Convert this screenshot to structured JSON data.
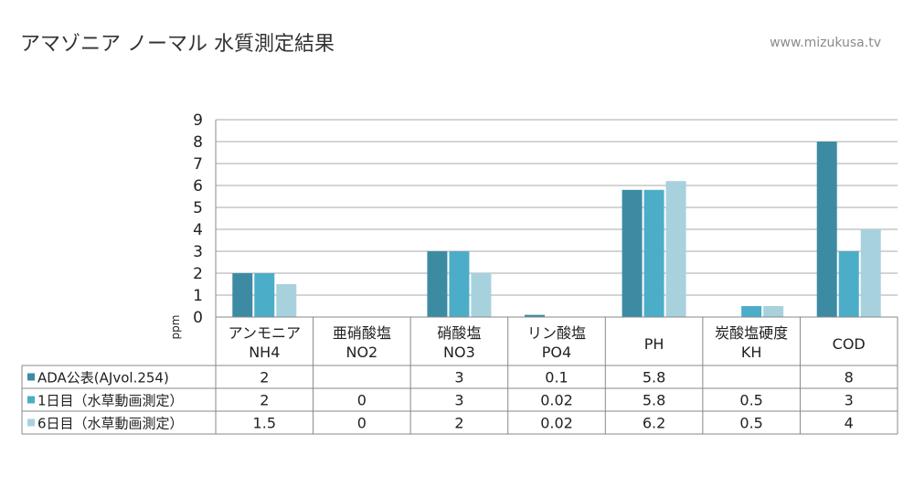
{
  "header": {
    "title": "アマゾニア ノーマル 水質測定結果",
    "site": "www.mizukusa.tv"
  },
  "chart_data": {
    "type": "bar",
    "ylabel": "ppm",
    "ylim": [
      0,
      9
    ],
    "yticks": [
      "0",
      "1",
      "2",
      "3",
      "4",
      "5",
      "6",
      "7",
      "8",
      "9"
    ],
    "grid": true,
    "legend": "data-table-left",
    "categories": [
      [
        "アンモニア",
        "NH4"
      ],
      [
        "亜硝酸塩",
        "NO2"
      ],
      [
        "硝酸塩",
        "NO3"
      ],
      [
        "リン酸塩",
        "PO4"
      ],
      [
        "PH"
      ],
      [
        "炭酸塩硬度",
        "KH"
      ],
      [
        "COD"
      ]
    ],
    "series": [
      {
        "name": "ADA公表(AJvol.254)",
        "color": "#3d8ba3",
        "values": [
          2,
          null,
          3,
          0.1,
          5.8,
          null,
          8
        ],
        "labels": [
          "2",
          "",
          "3",
          "0.1",
          "5.8",
          "",
          "8"
        ]
      },
      {
        "name": "1日目（水草動画測定）",
        "color": "#4badc8",
        "values": [
          2,
          0,
          3,
          0.02,
          5.8,
          0.5,
          3
        ],
        "labels": [
          "2",
          "0",
          "3",
          "0.02",
          "5.8",
          "0.5",
          "3"
        ]
      },
      {
        "name": "6日目（水草動画測定）",
        "color": "#a8d1de",
        "values": [
          1.5,
          0,
          2,
          0.02,
          6.2,
          0.5,
          4
        ],
        "labels": [
          "1.5",
          "0",
          "2",
          "0.02",
          "6.2",
          "0.5",
          "4"
        ]
      }
    ]
  }
}
